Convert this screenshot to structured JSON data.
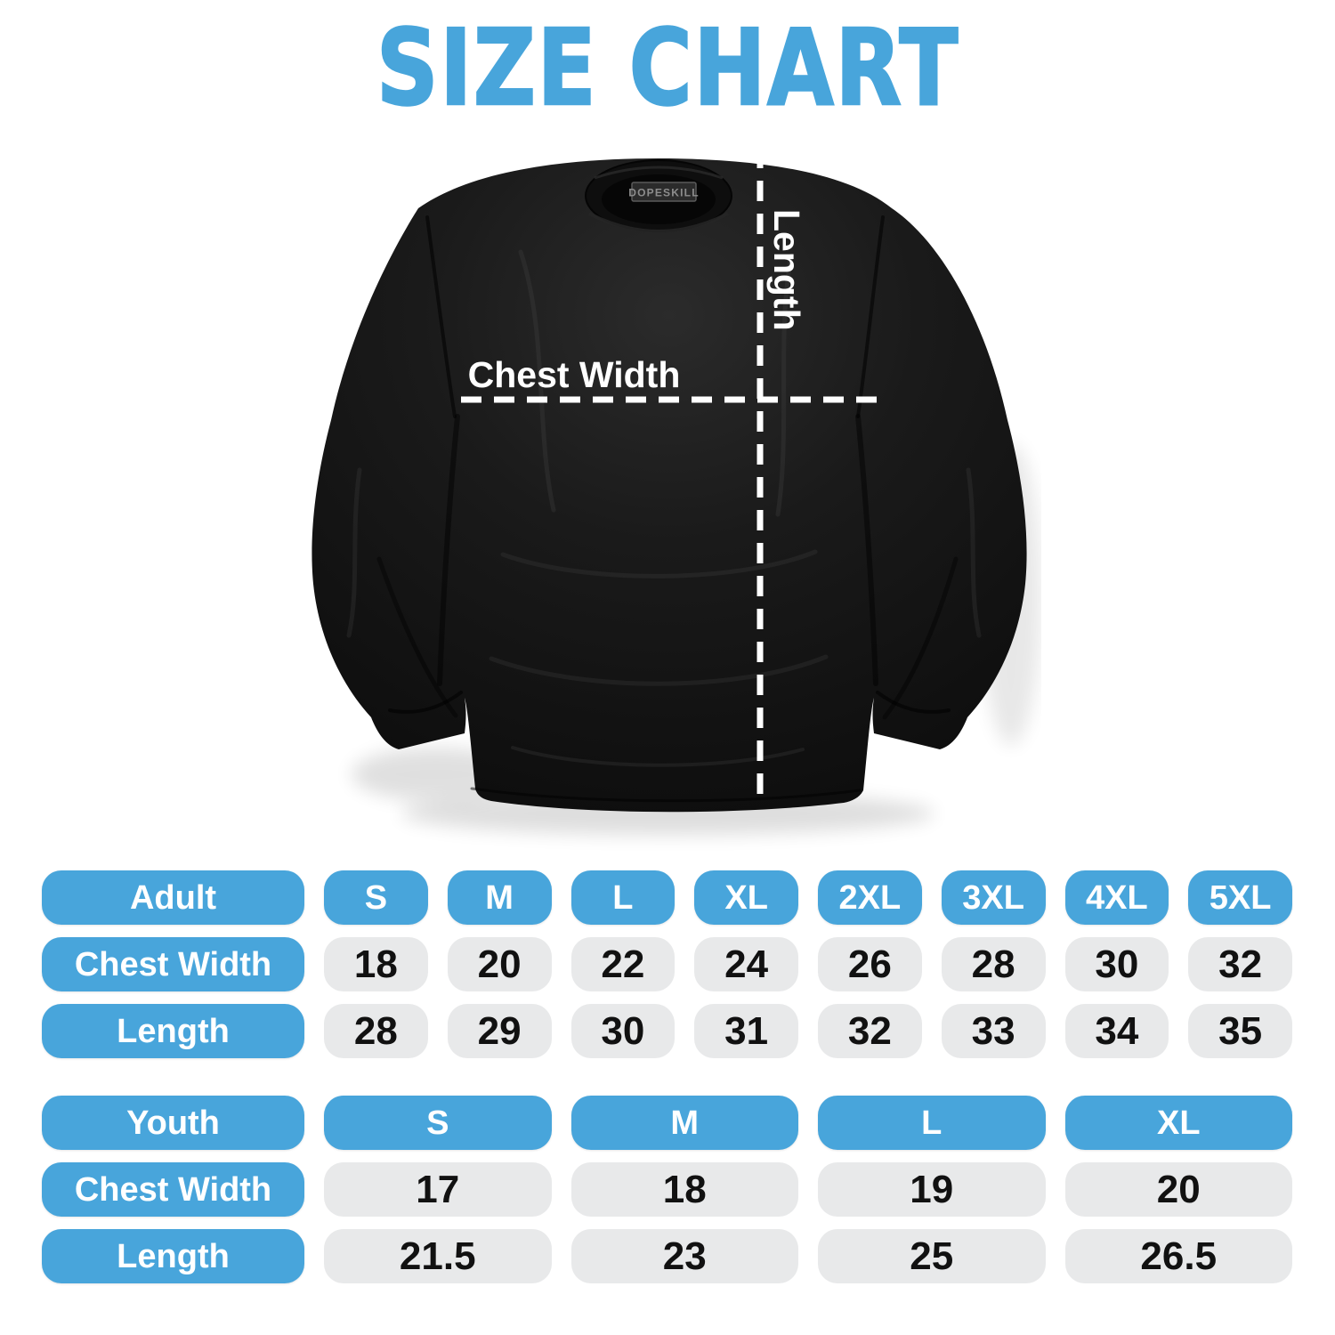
{
  "title": "SIZE CHART",
  "colors": {
    "accent_blue": "#48a5db",
    "value_pill_gray": "#e8e9ea",
    "value_text": "#111111",
    "shirt_black": "#161616",
    "measure_line_white": "#ffffff"
  },
  "shirt_diagram": {
    "brand_tag": "DOPESKILL",
    "chest_width_label": "Chest Width",
    "length_label": "Length"
  },
  "tables": [
    {
      "name": "adult",
      "group_label": "Adult",
      "sizes": [
        "S",
        "M",
        "L",
        "XL",
        "2XL",
        "3XL",
        "4XL",
        "5XL"
      ],
      "rows": [
        {
          "label": "Chest Width",
          "values": [
            "18",
            "20",
            "22",
            "24",
            "26",
            "28",
            "30",
            "32"
          ]
        },
        {
          "label": "Length",
          "values": [
            "28",
            "29",
            "30",
            "31",
            "32",
            "33",
            "34",
            "35"
          ]
        }
      ]
    },
    {
      "name": "youth",
      "group_label": "Youth",
      "sizes": [
        "S",
        "M",
        "L",
        "XL"
      ],
      "rows": [
        {
          "label": "Chest Width",
          "values": [
            "17",
            "18",
            "19",
            "20"
          ]
        },
        {
          "label": "Length",
          "values": [
            "21.5",
            "23",
            "25",
            "26.5"
          ]
        }
      ]
    }
  ]
}
